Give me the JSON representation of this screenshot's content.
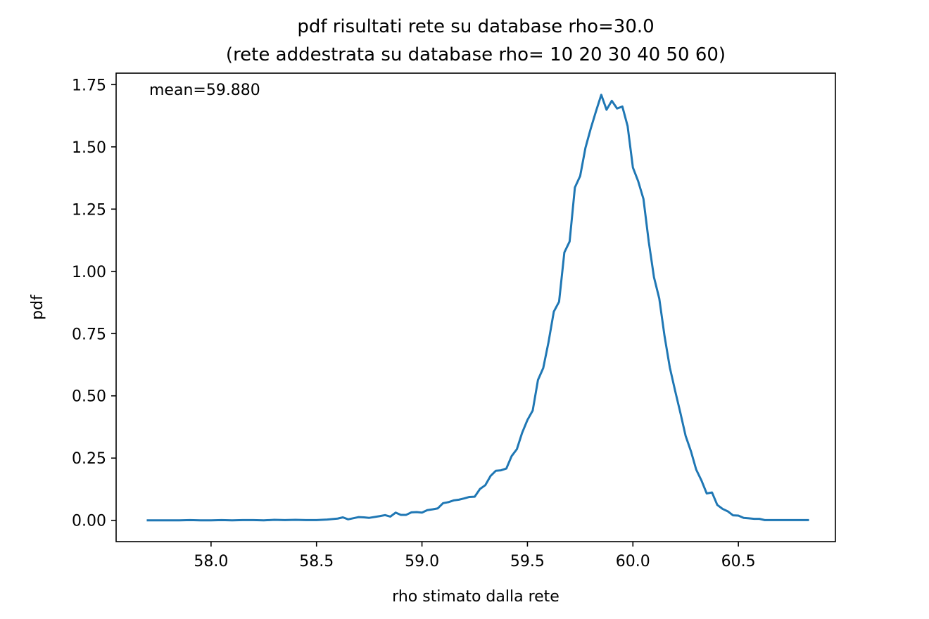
{
  "chart_data": {
    "type": "line",
    "title_line1": "pdf risultati rete su database rho=30.0",
    "title_line2": "(rete addestrata su database rho= 10 20 30 40 50 60)",
    "xlabel": "rho stimato dalla rete",
    "ylabel": "pdf",
    "annotation": "mean=59.880",
    "xlim": [
      57.55,
      60.96
    ],
    "ylim": [
      -0.0855,
      1.796
    ],
    "xticks": [
      58.0,
      58.5,
      59.0,
      59.5,
      60.0,
      60.5
    ],
    "xtick_labels": [
      "58.0",
      "58.5",
      "59.0",
      "59.5",
      "60.0",
      "60.5"
    ],
    "yticks": [
      0.0,
      0.25,
      0.5,
      0.75,
      1.0,
      1.25,
      1.5,
      1.75
    ],
    "ytick_labels": [
      "0.00",
      "0.25",
      "0.50",
      "0.75",
      "1.00",
      "1.25",
      "1.50",
      "1.75"
    ],
    "grid": false,
    "line_color": "#1f77b4",
    "series": [
      {
        "x": [
          57.7,
          57.75,
          57.8,
          57.85,
          57.9,
          57.95,
          58.0,
          58.05,
          58.1,
          58.15,
          58.2,
          58.25,
          58.3,
          58.35,
          58.4,
          58.45,
          58.5,
          58.55,
          58.6,
          58.625,
          58.65,
          58.7,
          58.725,
          58.75,
          58.8,
          58.825,
          58.85,
          58.875,
          58.9,
          58.925,
          58.95,
          58.975,
          59.0,
          59.025,
          59.05,
          59.075,
          59.1,
          59.125,
          59.15,
          59.175,
          59.2,
          59.225,
          59.25,
          59.275,
          59.3,
          59.325,
          59.35,
          59.375,
          59.4,
          59.425,
          59.45,
          59.475,
          59.5,
          59.525,
          59.55,
          59.575,
          59.6,
          59.625,
          59.65,
          59.675,
          59.7,
          59.725,
          59.75,
          59.775,
          59.8,
          59.825,
          59.85,
          59.875,
          59.9,
          59.925,
          59.95,
          59.975,
          60.0,
          60.025,
          60.05,
          60.075,
          60.1,
          60.125,
          60.15,
          60.175,
          60.2,
          60.225,
          60.25,
          60.275,
          60.3,
          60.325,
          60.35,
          60.375,
          60.4,
          60.425,
          60.45,
          60.475,
          60.5,
          60.525,
          60.55,
          60.575,
          60.6,
          60.625,
          60.65,
          60.675,
          60.7,
          60.75,
          60.8,
          60.83
        ],
        "y": [
          0.0,
          0.0,
          0.0,
          0.0,
          0.001,
          0.0,
          0.0,
          0.001,
          0.0,
          0.001,
          0.001,
          0.0,
          0.002,
          0.001,
          0.002,
          0.001,
          0.001,
          0.003,
          0.007,
          0.012,
          0.004,
          0.013,
          0.012,
          0.01,
          0.017,
          0.021,
          0.015,
          0.031,
          0.022,
          0.022,
          0.032,
          0.033,
          0.031,
          0.041,
          0.044,
          0.048,
          0.069,
          0.073,
          0.08,
          0.083,
          0.088,
          0.094,
          0.095,
          0.126,
          0.141,
          0.178,
          0.199,
          0.201,
          0.208,
          0.258,
          0.286,
          0.352,
          0.403,
          0.441,
          0.564,
          0.612,
          0.716,
          0.838,
          0.878,
          1.076,
          1.12,
          1.337,
          1.383,
          1.496,
          1.573,
          1.643,
          1.709,
          1.649,
          1.685,
          1.654,
          1.662,
          1.583,
          1.417,
          1.362,
          1.291,
          1.12,
          0.976,
          0.891,
          0.74,
          0.614,
          0.521,
          0.432,
          0.339,
          0.278,
          0.204,
          0.16,
          0.108,
          0.112,
          0.062,
          0.046,
          0.036,
          0.02,
          0.019,
          0.01,
          0.008,
          0.006,
          0.006,
          0.001,
          0.001,
          0.001,
          0.001,
          0.001,
          0.001,
          0.001
        ]
      }
    ]
  }
}
